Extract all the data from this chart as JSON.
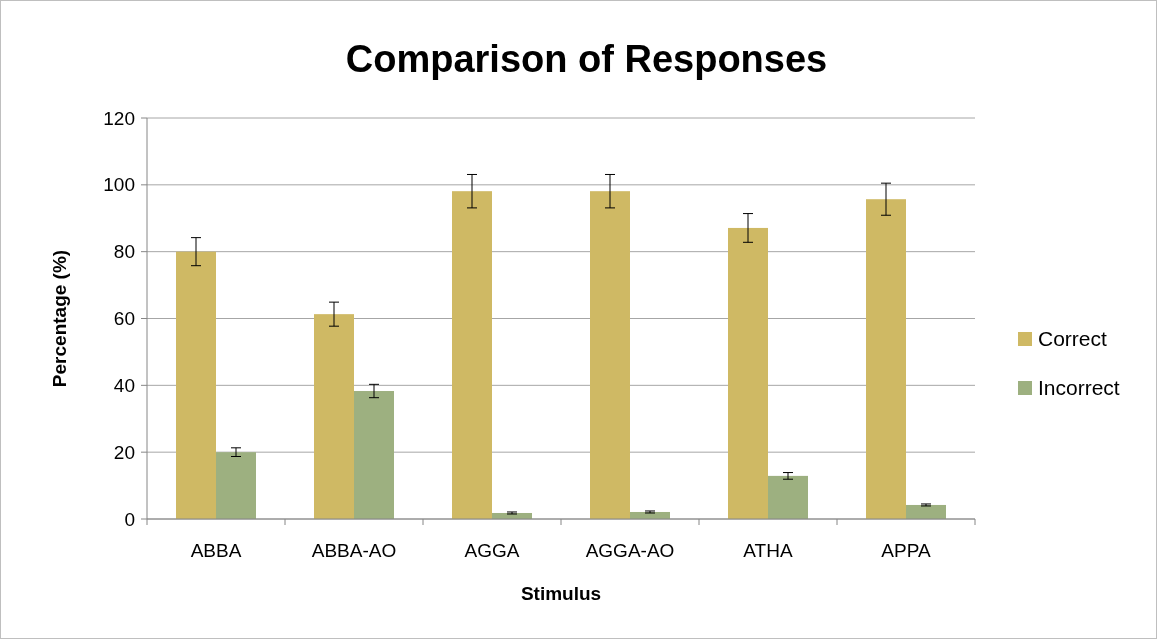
{
  "chart_data": {
    "type": "bar",
    "title": "Comparison of Responses",
    "xlabel": "Stimulus",
    "ylabel": "Percentage (%)",
    "categories": [
      "ABBA",
      "ABBA-AO",
      "AGGA",
      "AGGA-AO",
      "ATHA",
      "APPA"
    ],
    "series": [
      {
        "name": "Correct",
        "color": "#cfb964",
        "values": [
          80,
          61.3,
          98.1,
          98.1,
          87.1,
          95.7
        ],
        "errors": [
          4.2,
          3.6,
          5,
          5,
          4.3,
          4.8
        ]
      },
      {
        "name": "Incorrect",
        "color": "#9db080",
        "values": [
          20,
          38.3,
          1.8,
          2.1,
          12.9,
          4.2
        ],
        "errors": [
          1.3,
          2,
          0.3,
          0.3,
          1,
          0.3
        ]
      }
    ],
    "ylim": [
      0,
      120
    ],
    "yticks": [
      0,
      20,
      40,
      60,
      80,
      100,
      120
    ],
    "grid": "y",
    "legend": "right"
  }
}
